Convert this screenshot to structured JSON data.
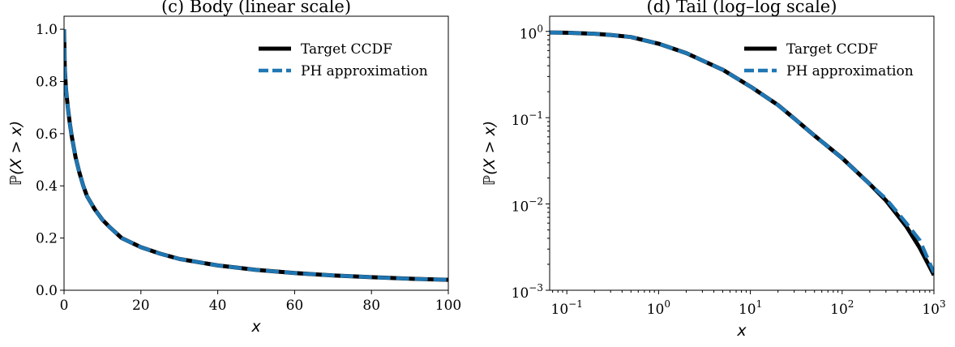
{
  "chart_data": [
    {
      "type": "line",
      "title": "(c) Body (linear scale)",
      "xlabel": "x",
      "ylabel": "ℙ(X > x)",
      "xscale": "linear",
      "yscale": "linear",
      "xlim": [
        0,
        100
      ],
      "ylim": [
        0,
        1.05
      ],
      "xticks": [
        0,
        20,
        40,
        60,
        80,
        100
      ],
      "xtick_labels": [
        "0",
        "20",
        "40",
        "60",
        "80",
        "100"
      ],
      "yticks": [
        0.0,
        0.2,
        0.4,
        0.6,
        0.8,
        1.0
      ],
      "ytick_labels": [
        "0.0",
        "0.2",
        "0.4",
        "0.6",
        "0.8",
        "1.0"
      ],
      "legend_position": "top-right",
      "series": [
        {
          "name": "Target CCDF",
          "color": "#000000",
          "style": "solid",
          "x": [
            0,
            0.2,
            0.5,
            1,
            1.5,
            2,
            3,
            4,
            5,
            6,
            8,
            10,
            12,
            15,
            20,
            25,
            30,
            40,
            50,
            60,
            70,
            80,
            90,
            100
          ],
          "y": [
            1.0,
            0.85,
            0.77,
            0.7,
            0.64,
            0.59,
            0.51,
            0.45,
            0.4,
            0.36,
            0.31,
            0.27,
            0.24,
            0.2,
            0.165,
            0.14,
            0.12,
            0.095,
            0.078,
            0.066,
            0.057,
            0.05,
            0.044,
            0.04
          ]
        },
        {
          "name": "PH approximation",
          "color": "#1f77b4",
          "style": "dashed",
          "x": [
            0,
            0.2,
            0.5,
            1,
            1.5,
            2,
            3,
            4,
            5,
            6,
            8,
            10,
            12,
            15,
            20,
            25,
            30,
            40,
            50,
            60,
            70,
            80,
            90,
            100
          ],
          "y": [
            1.0,
            0.85,
            0.77,
            0.7,
            0.64,
            0.59,
            0.51,
            0.45,
            0.4,
            0.36,
            0.31,
            0.27,
            0.24,
            0.2,
            0.165,
            0.14,
            0.12,
            0.095,
            0.078,
            0.066,
            0.057,
            0.05,
            0.044,
            0.04
          ]
        }
      ]
    },
    {
      "type": "line",
      "title": "(d) Tail (log–log scale)",
      "xlabel": "x",
      "ylabel": "ℙ(X > x)",
      "xscale": "log",
      "yscale": "log",
      "xlim": [
        0.065,
        1000
      ],
      "ylim": [
        0.001,
        1.5
      ],
      "xticks": [
        0.1,
        1,
        10,
        100,
        1000
      ],
      "xtick_labels": [
        [
          "10",
          "−1"
        ],
        [
          "10",
          "0"
        ],
        [
          "10",
          "1"
        ],
        [
          "10",
          "2"
        ],
        [
          "10",
          "3"
        ]
      ],
      "yticks": [
        0.001,
        0.01,
        0.1,
        1
      ],
      "ytick_labels": [
        [
          "10",
          "−3"
        ],
        [
          "10",
          "−2"
        ],
        [
          "10",
          "−1"
        ],
        [
          "10",
          "0"
        ]
      ],
      "legend_position": "top-right",
      "series": [
        {
          "name": "Target CCDF",
          "color": "#000000",
          "style": "solid",
          "x": [
            0.065,
            0.1,
            0.2,
            0.3,
            0.5,
            1,
            2,
            3,
            5,
            10,
            20,
            30,
            50,
            100,
            200,
            300,
            500,
            700,
            1000
          ],
          "y": [
            0.97,
            0.965,
            0.94,
            0.91,
            0.86,
            0.72,
            0.56,
            0.46,
            0.36,
            0.23,
            0.14,
            0.098,
            0.062,
            0.034,
            0.017,
            0.011,
            0.0055,
            0.0031,
            0.0015
          ]
        },
        {
          "name": "PH approximation",
          "color": "#1f77b4",
          "style": "dashed",
          "x": [
            0.065,
            0.1,
            0.2,
            0.3,
            0.5,
            1,
            2,
            3,
            5,
            10,
            20,
            30,
            50,
            100,
            200,
            300,
            500,
            700,
            1000
          ],
          "y": [
            0.97,
            0.965,
            0.94,
            0.91,
            0.86,
            0.72,
            0.56,
            0.46,
            0.36,
            0.23,
            0.14,
            0.098,
            0.062,
            0.034,
            0.017,
            0.0115,
            0.006,
            0.0038,
            0.0016
          ]
        }
      ]
    }
  ]
}
